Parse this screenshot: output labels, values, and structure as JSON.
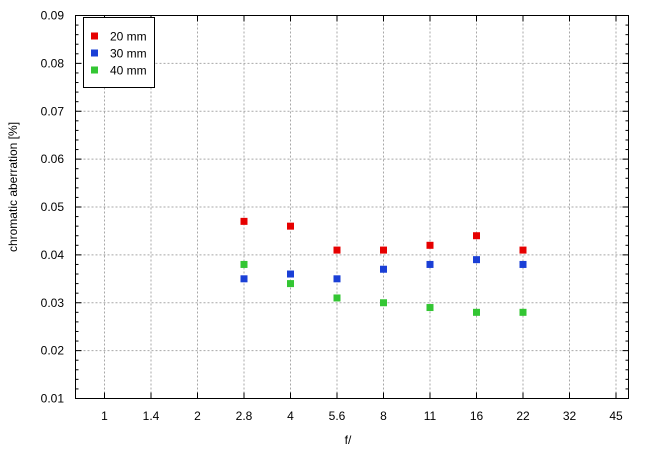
{
  "chart_data": {
    "type": "scatter",
    "xlabel": "f/",
    "ylabel": "chromatic  aberration [%]",
    "x_tick_labels": [
      "1",
      "1.4",
      "2",
      "2.8",
      "4",
      "5.6",
      "8",
      "11",
      "16",
      "22",
      "32",
      "45"
    ],
    "ylim": [
      0.01,
      0.09
    ],
    "y_ticks": [
      0.01,
      0.02,
      0.03,
      0.04,
      0.05,
      0.06,
      0.07,
      0.08,
      0.09
    ],
    "y_minor_step": 0.002,
    "grid": true,
    "legend_position": "top-left",
    "series": [
      {
        "name": "20 mm",
        "color": "#e60000",
        "points": [
          {
            "x": "2.8",
            "y": 0.047
          },
          {
            "x": "4",
            "y": 0.046
          },
          {
            "x": "5.6",
            "y": 0.041
          },
          {
            "x": "8",
            "y": 0.041
          },
          {
            "x": "11",
            "y": 0.042
          },
          {
            "x": "16",
            "y": 0.044
          },
          {
            "x": "22",
            "y": 0.041
          }
        ]
      },
      {
        "name": "30 mm",
        "color": "#1a3fd6",
        "points": [
          {
            "x": "2.8",
            "y": 0.035
          },
          {
            "x": "4",
            "y": 0.036
          },
          {
            "x": "5.6",
            "y": 0.035
          },
          {
            "x": "8",
            "y": 0.037
          },
          {
            "x": "11",
            "y": 0.038
          },
          {
            "x": "16",
            "y": 0.039
          },
          {
            "x": "22",
            "y": 0.038
          }
        ]
      },
      {
        "name": "40 mm",
        "color": "#33c633",
        "points": [
          {
            "x": "2.8",
            "y": 0.038
          },
          {
            "x": "4",
            "y": 0.034
          },
          {
            "x": "5.6",
            "y": 0.031
          },
          {
            "x": "8",
            "y": 0.03
          },
          {
            "x": "11",
            "y": 0.029
          },
          {
            "x": "16",
            "y": 0.028
          },
          {
            "x": "22",
            "y": 0.028
          }
        ]
      }
    ]
  }
}
